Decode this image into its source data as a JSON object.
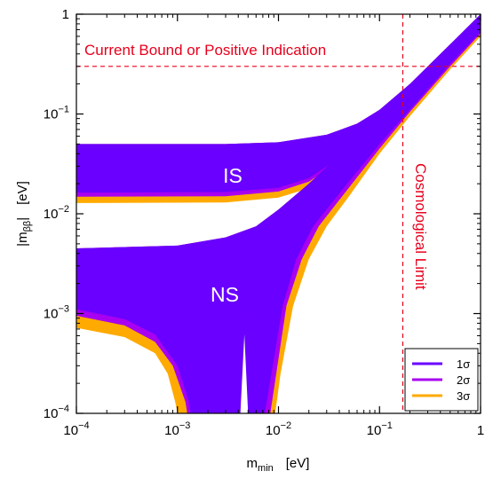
{
  "chart_data": {
    "type": "area",
    "xlabel_main": "m",
    "xlabel_sub": "min",
    "xlabel_unit": "[eV]",
    "ylabel_main": "|m",
    "ylabel_sub": "ββ",
    "ylabel_end": "|",
    "ylabel_unit": "[eV]",
    "xscale": "log",
    "yscale": "log",
    "xlim": [
      0.0001,
      1
    ],
    "ylim": [
      0.0001,
      1
    ],
    "x_ticks": [
      {
        "base": "10",
        "exp": "−4",
        "value": 0.0001
      },
      {
        "base": "10",
        "exp": "−3",
        "value": 0.001
      },
      {
        "base": "10",
        "exp": "−2",
        "value": 0.01
      },
      {
        "base": "10",
        "exp": "−1",
        "value": 0.1
      },
      {
        "base": "1",
        "exp": "",
        "value": 1
      }
    ],
    "y_ticks": [
      {
        "base": "10",
        "exp": "−4",
        "value": 0.0001
      },
      {
        "base": "10",
        "exp": "−3",
        "value": 0.001
      },
      {
        "base": "10",
        "exp": "−2",
        "value": 0.01
      },
      {
        "base": "10",
        "exp": "−1",
        "value": 0.1
      },
      {
        "base": "1",
        "exp": "",
        "value": 1
      }
    ],
    "annotations": {
      "current_bound": {
        "text": "Current Bound or Positive Indication",
        "y": 0.3
      },
      "cosmological_limit": {
        "text": "Cosmological Limit",
        "x": 0.17
      },
      "inverted": {
        "text": "IS",
        "x": 0.0045,
        "y": 0.02
      },
      "normal": {
        "text": "NS",
        "x": 0.0045,
        "y": 0.0012
      }
    },
    "legend": {
      "position": "bottom-right",
      "entries": [
        {
          "name": "1σ",
          "color": "#6a00ff"
        },
        {
          "name": "2σ",
          "color": "#a800f0"
        },
        {
          "name": "3σ",
          "color": "#ffaa00"
        }
      ]
    },
    "series": [
      {
        "name": "3σ",
        "color": "#ffaa00",
        "regions": {
          "inverted": {
            "upper": [
              [
                0.0001,
                0.05
              ],
              [
                0.003,
                0.05
              ],
              [
                0.01,
                0.052
              ],
              [
                0.03,
                0.062
              ],
              [
                0.06,
                0.08
              ],
              [
                0.1,
                0.11
              ],
              [
                0.2,
                0.2
              ],
              [
                0.5,
                0.5
              ],
              [
                1,
                1
              ]
            ],
            "lower": [
              [
                0.0001,
                0.0128
              ],
              [
                0.003,
                0.013
              ],
              [
                0.01,
                0.0145
              ],
              [
                0.02,
                0.018
              ],
              [
                0.05,
                0.034
              ],
              [
                0.1,
                0.064
              ],
              [
                0.2,
                0.125
              ],
              [
                0.5,
                0.3
              ],
              [
                1,
                0.6
              ]
            ]
          },
          "normal_upper": [
            [
              0.0001,
              0.0045
            ],
            [
              0.001,
              0.0048
            ],
            [
              0.003,
              0.0058
            ],
            [
              0.006,
              0.0075
            ],
            [
              0.01,
              0.011
            ],
            [
              0.02,
              0.02
            ],
            [
              0.05,
              0.048
            ],
            [
              0.1,
              0.095
            ],
            [
              0.2,
              0.19
            ],
            [
              0.5,
              0.48
            ],
            [
              1,
              0.96
            ]
          ],
          "normal_lower": [
            [
              0.0001,
              0.00072
            ],
            [
              0.0003,
              0.00058
            ],
            [
              0.0006,
              0.0004
            ],
            [
              0.0008,
              0.00025
            ],
            [
              0.00095,
              0.00013
            ],
            [
              0.001,
              0.0001
            ]
          ],
          "normal_lower_right": [
            [
              0.0093,
              0.0001
            ],
            [
              0.0105,
              0.00025
            ],
            [
              0.014,
              0.0012
            ],
            [
              0.02,
              0.0035
            ],
            [
              0.03,
              0.0075
            ],
            [
              0.05,
              0.015
            ],
            [
              0.1,
              0.04
            ],
            [
              0.2,
              0.095
            ],
            [
              0.5,
              0.28
            ],
            [
              1,
              0.6
            ]
          ],
          "dip": [
            [
              0.0038,
              0.0001
            ],
            [
              0.0046,
              0.00098
            ],
            [
              0.0058,
              0.0001
            ]
          ]
        }
      },
      {
        "name": "2σ",
        "color": "#a800f0",
        "regions": {
          "inverted": {
            "upper": [
              [
                0.0001,
                0.05
              ],
              [
                0.003,
                0.05
              ],
              [
                0.01,
                0.052
              ],
              [
                0.03,
                0.062
              ],
              [
                0.06,
                0.08
              ],
              [
                0.1,
                0.11
              ],
              [
                0.2,
                0.2
              ],
              [
                0.5,
                0.5
              ],
              [
                1,
                1
              ]
            ],
            "lower": [
              [
                0.0001,
                0.0148
              ],
              [
                0.003,
                0.015
              ],
              [
                0.01,
                0.0167
              ],
              [
                0.02,
                0.021
              ],
              [
                0.05,
                0.039
              ],
              [
                0.1,
                0.072
              ],
              [
                0.2,
                0.14
              ],
              [
                0.5,
                0.34
              ],
              [
                1,
                0.68
              ]
            ]
          },
          "normal_upper": [
            [
              0.0001,
              0.0045
            ],
            [
              0.001,
              0.0048
            ],
            [
              0.003,
              0.0058
            ],
            [
              0.006,
              0.0075
            ],
            [
              0.01,
              0.011
            ],
            [
              0.02,
              0.02
            ],
            [
              0.05,
              0.048
            ],
            [
              0.1,
              0.095
            ],
            [
              0.2,
              0.19
            ],
            [
              0.5,
              0.48
            ],
            [
              1,
              0.96
            ]
          ],
          "normal_lower": [
            [
              0.0001,
              0.00095
            ],
            [
              0.0003,
              0.00076
            ],
            [
              0.0006,
              0.00052
            ],
            [
              0.0009,
              0.0003
            ],
            [
              0.0012,
              0.00013
            ],
            [
              0.00125,
              0.0001
            ]
          ],
          "normal_lower_right": [
            [
              0.0083,
              0.0001
            ],
            [
              0.0095,
              0.00025
            ],
            [
              0.012,
              0.0012
            ],
            [
              0.017,
              0.0035
            ],
            [
              0.025,
              0.0075
            ],
            [
              0.045,
              0.016
            ],
            [
              0.1,
              0.045
            ],
            [
              0.2,
              0.105
            ],
            [
              0.5,
              0.3
            ],
            [
              1,
              0.64
            ]
          ],
          "dip": [
            [
              0.0036,
              0.0001
            ],
            [
              0.0046,
              0.001
            ],
            [
              0.006,
              0.0001
            ]
          ]
        }
      },
      {
        "name": "1σ",
        "color": "#6a00ff",
        "regions": {
          "inverted": {
            "upper": [
              [
                0.0001,
                0.05
              ],
              [
                0.003,
                0.05
              ],
              [
                0.01,
                0.052
              ],
              [
                0.03,
                0.062
              ],
              [
                0.06,
                0.08
              ],
              [
                0.1,
                0.11
              ],
              [
                0.2,
                0.2
              ],
              [
                0.5,
                0.5
              ],
              [
                1,
                1
              ]
            ],
            "lower": [
              [
                0.0001,
                0.0163
              ],
              [
                0.003,
                0.0165
              ],
              [
                0.01,
                0.0182
              ],
              [
                0.02,
                0.0228
              ],
              [
                0.05,
                0.042
              ],
              [
                0.1,
                0.077
              ],
              [
                0.2,
                0.148
              ],
              [
                0.5,
                0.36
              ],
              [
                1,
                0.72
              ]
            ]
          },
          "normal_upper": [
            [
              0.0001,
              0.0045
            ],
            [
              0.001,
              0.0048
            ],
            [
              0.003,
              0.0058
            ],
            [
              0.006,
              0.0075
            ],
            [
              0.01,
              0.011
            ],
            [
              0.02,
              0.02
            ],
            [
              0.05,
              0.048
            ],
            [
              0.1,
              0.095
            ],
            [
              0.2,
              0.19
            ],
            [
              0.5,
              0.48
            ],
            [
              1,
              0.96
            ]
          ],
          "normal_lower": [
            [
              0.0001,
              0.0011
            ],
            [
              0.0003,
              0.00088
            ],
            [
              0.0006,
              0.00062
            ],
            [
              0.001,
              0.0003
            ],
            [
              0.0013,
              0.00013
            ],
            [
              0.00135,
              0.0001
            ]
          ],
          "normal_lower_right": [
            [
              0.0073,
              0.0001
            ],
            [
              0.0085,
              0.00025
            ],
            [
              0.011,
              0.0012
            ],
            [
              0.015,
              0.0035
            ],
            [
              0.022,
              0.0075
            ],
            [
              0.04,
              0.016
            ],
            [
              0.1,
              0.05
            ],
            [
              0.2,
              0.11
            ],
            [
              0.5,
              0.32
            ],
            [
              1,
              0.66
            ]
          ],
          "dip": [
            [
              0.0034,
              0.0001
            ],
            [
              0.0046,
              0.001
            ],
            [
              0.0062,
              0.0001
            ]
          ]
        }
      }
    ]
  }
}
